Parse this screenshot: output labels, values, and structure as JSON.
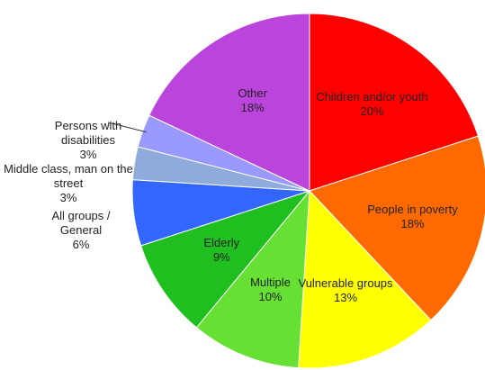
{
  "chart_data": {
    "type": "pie",
    "categories": [
      "Children and/or youth",
      "People in poverty",
      "Vulnerable groups",
      "Multiple",
      "Elderly",
      "All groups / General",
      "Middle class, man on the street",
      "Persons with disabilities",
      "Other"
    ],
    "values": [
      20,
      18,
      13,
      10,
      9,
      6,
      3,
      3,
      18
    ],
    "value_labels": [
      "20%",
      "18%",
      "13%",
      "10%",
      "9%",
      "6%",
      "3%",
      "3%",
      "18%"
    ],
    "colors": [
      "#ff0000",
      "#ff6a00",
      "#ffff00",
      "#66e033",
      "#1fbf1f",
      "#3366ff",
      "#8fabdc",
      "#9999ff",
      "#bb44dd"
    ]
  }
}
